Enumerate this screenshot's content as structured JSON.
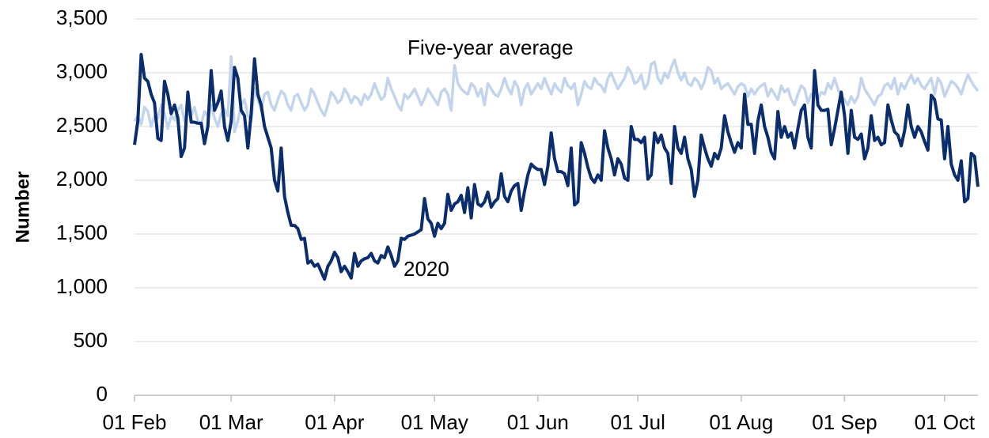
{
  "chart_data": {
    "type": "line",
    "y_label": "Number",
    "categories": [
      "01 Feb",
      null,
      null,
      null,
      null,
      null,
      null,
      null,
      null,
      null,
      null,
      null,
      null,
      null,
      null,
      null,
      null,
      null,
      null,
      null,
      null,
      null,
      null,
      null,
      null,
      null,
      null,
      null,
      null,
      "01 Mar",
      null,
      null,
      null,
      null,
      null,
      null,
      null,
      null,
      null,
      null,
      null,
      null,
      null,
      null,
      null,
      null,
      null,
      null,
      null,
      null,
      null,
      null,
      null,
      null,
      null,
      null,
      null,
      null,
      null,
      null,
      "01 Apr",
      null,
      null,
      null,
      null,
      null,
      null,
      null,
      null,
      null,
      null,
      null,
      null,
      null,
      null,
      null,
      null,
      null,
      null,
      null,
      null,
      null,
      null,
      null,
      null,
      null,
      null,
      null,
      null,
      null,
      "01 May",
      null,
      null,
      null,
      null,
      null,
      null,
      null,
      null,
      null,
      null,
      null,
      null,
      null,
      null,
      null,
      null,
      null,
      null,
      null,
      null,
      null,
      null,
      null,
      null,
      null,
      null,
      null,
      null,
      null,
      null,
      "01 Jun",
      null,
      null,
      null,
      null,
      null,
      null,
      null,
      null,
      null,
      null,
      null,
      null,
      null,
      null,
      null,
      null,
      null,
      null,
      null,
      null,
      null,
      null,
      null,
      null,
      null,
      null,
      null,
      null,
      null,
      "01 Jul",
      null,
      null,
      null,
      null,
      null,
      null,
      null,
      null,
      null,
      null,
      null,
      null,
      null,
      null,
      null,
      null,
      null,
      null,
      null,
      null,
      null,
      null,
      null,
      null,
      null,
      null,
      null,
      null,
      null,
      null,
      "01 Aug",
      null,
      null,
      null,
      null,
      null,
      null,
      null,
      null,
      null,
      null,
      null,
      null,
      null,
      null,
      null,
      null,
      null,
      null,
      null,
      null,
      null,
      null,
      null,
      null,
      null,
      null,
      null,
      null,
      null,
      null,
      "01 Sep",
      null,
      null,
      null,
      null,
      null,
      null,
      null,
      null,
      null,
      null,
      null,
      null,
      null,
      null,
      null,
      null,
      null,
      null,
      null,
      null,
      null,
      null,
      null,
      null,
      null,
      null,
      null,
      null,
      null,
      "01 Oct",
      null,
      null,
      null,
      null,
      null,
      null,
      null,
      null,
      null,
      null
    ],
    "series": [
      {
        "name": "Five-year average",
        "color": "#c3d5ec",
        "values": [
          2550,
          2600,
          2520,
          2680,
          2640,
          2500,
          2600,
          2580,
          2700,
          2620,
          2480,
          2600,
          2560,
          2650,
          2700,
          2550,
          2620,
          2600,
          2680,
          2550,
          2520,
          2640,
          2600,
          2700,
          2580,
          2500,
          2620,
          2660,
          2600,
          3150,
          2450,
          2550,
          2700,
          2750,
          2600,
          2550,
          2850,
          2750,
          2650,
          2800,
          2820,
          2700,
          2650,
          2750,
          2830,
          2800,
          2700,
          2650,
          2780,
          2800,
          2720,
          2650,
          2700,
          2850,
          2800,
          2720,
          2650,
          2600,
          2700,
          2820,
          2780,
          2720,
          2750,
          2850,
          2800,
          2720,
          2780,
          2760,
          2700,
          2800,
          2750,
          2800,
          2900,
          2820,
          2750,
          2780,
          2950,
          2850,
          2780,
          2700,
          2650,
          2800,
          2760,
          2800,
          2850,
          2780,
          2700,
          2760,
          2850,
          2800,
          2750,
          2700,
          2820,
          2850,
          2800,
          2650,
          3070,
          2900,
          2850,
          2820,
          2800,
          2900,
          2870,
          2780,
          2850,
          2700,
          2900,
          2850,
          2800,
          2780,
          2850,
          2950,
          2860,
          2800,
          2920,
          2870,
          2700,
          2850,
          2900,
          2800,
          2850,
          2900,
          2850,
          2950,
          2870,
          2800,
          2900,
          2850,
          2820,
          2950,
          2880,
          2850,
          2900,
          2700,
          2800,
          2920,
          2870,
          2850,
          2950,
          2900,
          2880,
          2820,
          2950,
          3000,
          2920,
          2850,
          2900,
          2950,
          3050,
          3000,
          2900,
          2920,
          2980,
          2850,
          2900,
          3080,
          3100,
          2950,
          2900,
          3000,
          2950,
          3050,
          3120,
          3000,
          2930,
          3000,
          2900,
          2880,
          2950,
          2920,
          2850,
          2920,
          3050,
          3020,
          2900,
          2950,
          2850,
          2880,
          2900,
          2850,
          2800,
          2870,
          2900,
          2880,
          2780,
          2850,
          2800,
          2850,
          2880,
          2900,
          2780,
          2850,
          2800,
          2750,
          2880,
          2820,
          2850,
          2750,
          2700,
          2800,
          2880,
          2850,
          2720,
          2800,
          2780,
          2750,
          2820,
          2800,
          2900,
          2850,
          2950,
          2850,
          2780,
          2750,
          2700,
          2780,
          2720,
          2780,
          2950,
          2850,
          2800,
          2750,
          2700,
          2780,
          2800,
          2880,
          2900,
          2850,
          2950,
          2800,
          2900,
          2850,
          2920,
          2980,
          2900,
          2950,
          2880,
          2850,
          2900,
          2950,
          2800,
          2950,
          2900,
          2780,
          2850,
          2920,
          2900,
          2860,
          2800,
          2900,
          2980,
          2920,
          2870,
          2830
        ]
      },
      {
        "name": "2020",
        "color": "#0a2d6e",
        "values": [
          2330,
          2550,
          3170,
          2950,
          2920,
          2800,
          2720,
          2390,
          2370,
          2920,
          2800,
          2620,
          2700,
          2580,
          2220,
          2300,
          2820,
          2540,
          2540,
          2530,
          2530,
          2340,
          2500,
          3020,
          2650,
          2720,
          2830,
          2500,
          2370,
          2550,
          3050,
          2950,
          2650,
          2600,
          2300,
          2620,
          3130,
          2800,
          2700,
          2500,
          2400,
          2300,
          2000,
          1900,
          2300,
          1850,
          1700,
          1580,
          1580,
          1550,
          1450,
          1460,
          1230,
          1250,
          1200,
          1220,
          1150,
          1080,
          1200,
          1250,
          1330,
          1280,
          1150,
          1200,
          1150,
          1090,
          1320,
          1200,
          1250,
          1270,
          1280,
          1320,
          1250,
          1230,
          1300,
          1280,
          1380,
          1300,
          1200,
          1250,
          1460,
          1450,
          1480,
          1490,
          1500,
          1520,
          1540,
          1830,
          1640,
          1600,
          1480,
          1600,
          1550,
          1600,
          1870,
          1720,
          1780,
          1800,
          1860,
          1700,
          1930,
          1650,
          1960,
          1780,
          1760,
          1800,
          1890,
          1750,
          1800,
          1830,
          2060,
          1850,
          1800,
          1900,
          1950,
          1970,
          1720,
          1900,
          2050,
          2150,
          2120,
          2100,
          2100,
          1960,
          2130,
          2440,
          2200,
          2080,
          2080,
          2060,
          1950,
          2300,
          1770,
          1800,
          2350,
          2250,
          2120,
          2020,
          1980,
          2050,
          2000,
          2460,
          2300,
          2200,
          2050,
          2200,
          2150,
          2020,
          2000,
          2500,
          2380,
          2380,
          2350,
          2400,
          2010,
          2050,
          2440,
          2350,
          2420,
          2300,
          2250,
          1970,
          2500,
          2300,
          2250,
          2400,
          2200,
          2100,
          1850,
          2000,
          2420,
          2300,
          2200,
          2130,
          2250,
          2200,
          2300,
          2600,
          2450,
          2350,
          2260,
          2350,
          2300,
          2800,
          2520,
          2520,
          2250,
          2550,
          2700,
          2500,
          2400,
          2260,
          2200,
          2640,
          2400,
          2500,
          2400,
          2440,
          2300,
          2480,
          2650,
          2700,
          2400,
          2300,
          3020,
          2700,
          2650,
          2650,
          2660,
          2330,
          2480,
          2650,
          2820,
          2600,
          2250,
          2650,
          2400,
          2380,
          2430,
          2200,
          2300,
          2600,
          2370,
          2400,
          2330,
          2350,
          2700,
          2560,
          2450,
          2420,
          2320,
          2460,
          2700,
          2500,
          2400,
          2500,
          2450,
          2360,
          2280,
          2790,
          2750,
          2570,
          2560,
          2200,
          2500,
          2150,
          2050,
          2000,
          2180,
          1800,
          1830,
          2250,
          2220,
          1940
        ]
      }
    ],
    "ylim": [
      0,
      3500
    ],
    "yticks": [
      0,
      500,
      {
        "value": 1000,
        "label": "1,000"
      },
      {
        "value": 1500,
        "label": "1,500"
      },
      {
        "value": 2000,
        "label": "2,000"
      },
      {
        "value": 2500,
        "label": "2,500"
      },
      {
        "value": 3000,
        "label": "3,000"
      },
      {
        "value": 3500,
        "label": "3,500"
      }
    ],
    "grid": true
  }
}
